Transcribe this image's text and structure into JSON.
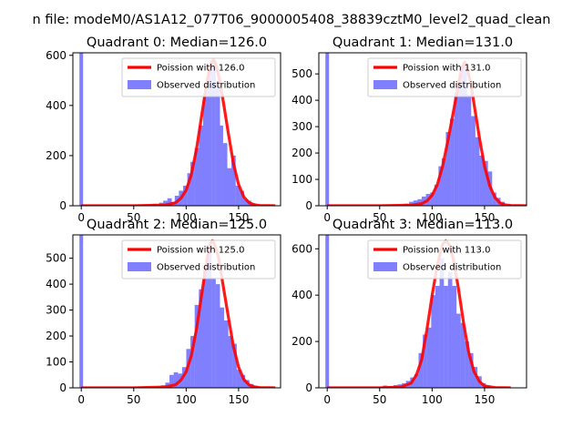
{
  "figure": {
    "suptitle": "n file: modeM0/AS1A12_077T06_9000005408_38839cztM0_level2_quad_clean"
  },
  "colors": {
    "poisson": "#ff0000",
    "observed": "#8080ff",
    "spike": "#8080ff"
  },
  "chart_data": [
    {
      "type": "bar",
      "title": "Quadrant 0: Median=126.0",
      "xlim": [
        -8,
        190
      ],
      "ylim": [
        0,
        610
      ],
      "xticks": [
        0,
        50,
        100,
        150
      ],
      "yticks": [
        0,
        200,
        400,
        600
      ],
      "bin_width": 3.8,
      "zero_spike": 610,
      "median": 126,
      "poisson_x": [
        0,
        50,
        80,
        90,
        95,
        100,
        105,
        110,
        115,
        120,
        124,
        126,
        128,
        132,
        136,
        140,
        145,
        150,
        155,
        160,
        165,
        170,
        185
      ],
      "poisson_y": [
        0,
        0,
        3,
        12,
        30,
        62,
        125,
        230,
        365,
        500,
        570,
        582,
        570,
        500,
        400,
        295,
        170,
        85,
        35,
        12,
        4,
        1,
        0
      ],
      "hist_x": [
        70,
        76,
        80,
        84,
        88,
        91,
        95,
        99,
        103,
        106,
        110,
        114,
        118,
        122,
        126,
        130,
        133,
        137,
        141,
        145,
        149,
        153,
        157,
        160,
        164
      ],
      "hist_y": [
        8,
        12,
        20,
        30,
        15,
        40,
        60,
        80,
        130,
        175,
        230,
        320,
        440,
        560,
        580,
        480,
        320,
        250,
        150,
        200,
        80,
        60,
        25,
        20,
        10
      ],
      "series": [
        {
          "name": "Poission with 126.0",
          "kind": "line"
        },
        {
          "name": "Observed distribution",
          "kind": "bar"
        }
      ]
    },
    {
      "type": "bar",
      "title": "Quadrant 1: Median=131.0",
      "xlim": [
        -8,
        190
      ],
      "ylim": [
        0,
        580
      ],
      "xticks": [
        0,
        50,
        100,
        150
      ],
      "yticks": [
        0,
        100,
        200,
        300,
        400,
        500
      ],
      "bin_width": 3.8,
      "zero_spike": 580,
      "median": 131,
      "poisson_x": [
        0,
        50,
        80,
        90,
        95,
        100,
        105,
        110,
        115,
        120,
        125,
        129,
        131,
        133,
        137,
        141,
        145,
        150,
        155,
        160,
        165,
        170,
        175,
        190
      ],
      "poisson_y": [
        0,
        0,
        2,
        8,
        18,
        40,
        80,
        150,
        245,
        350,
        460,
        530,
        545,
        530,
        460,
        360,
        260,
        150,
        75,
        30,
        10,
        3,
        1,
        0
      ],
      "hist_x": [
        75,
        80,
        84,
        88,
        92,
        96,
        100,
        104,
        108,
        111,
        115,
        119,
        123,
        127,
        131,
        135,
        139,
        143,
        147,
        151,
        155,
        159,
        163,
        167
      ],
      "hist_y": [
        8,
        15,
        20,
        25,
        35,
        45,
        50,
        80,
        150,
        180,
        280,
        330,
        430,
        500,
        540,
        420,
        340,
        260,
        190,
        170,
        130,
        50,
        30,
        15
      ],
      "series": [
        {
          "name": "Poission with 131.0",
          "kind": "line"
        },
        {
          "name": "Observed distribution",
          "kind": "bar"
        }
      ]
    },
    {
      "type": "bar",
      "title": "Quadrant 2: Median=125.0",
      "xlim": [
        -8,
        190
      ],
      "ylim": [
        0,
        590
      ],
      "xticks": [
        0,
        50,
        100,
        150
      ],
      "yticks": [
        0,
        100,
        200,
        300,
        400,
        500
      ],
      "bin_width": 3.8,
      "zero_spike": 590,
      "median": 125,
      "poisson_x": [
        0,
        50,
        80,
        90,
        95,
        100,
        105,
        110,
        115,
        120,
        123,
        125,
        127,
        131,
        135,
        140,
        145,
        150,
        155,
        160,
        165,
        170,
        185
      ],
      "poisson_y": [
        0,
        0,
        3,
        12,
        30,
        62,
        125,
        230,
        365,
        500,
        555,
        568,
        555,
        500,
        400,
        280,
        160,
        80,
        32,
        11,
        4,
        1,
        0
      ],
      "hist_x": [
        73,
        78,
        82,
        86,
        90,
        94,
        98,
        102,
        106,
        110,
        114,
        118,
        122,
        126,
        130,
        134,
        138,
        142,
        146,
        150,
        154,
        158,
        162,
        166
      ],
      "hist_y": [
        5,
        10,
        20,
        50,
        60,
        55,
        80,
        150,
        200,
        320,
        380,
        470,
        550,
        420,
        400,
        310,
        260,
        200,
        170,
        70,
        50,
        30,
        15,
        8
      ],
      "series": [
        {
          "name": "Poission with 125.0",
          "kind": "line"
        },
        {
          "name": "Observed distribution",
          "kind": "bar"
        }
      ]
    },
    {
      "type": "bar",
      "title": "Quadrant 3: Median=113.0",
      "xlim": [
        -8,
        190
      ],
      "ylim": [
        0,
        660
      ],
      "xticks": [
        0,
        50,
        100,
        150
      ],
      "yticks": [
        0,
        200,
        400,
        600
      ],
      "bin_width": 3.8,
      "zero_spike": 660,
      "median": 113,
      "poisson_x": [
        0,
        50,
        70,
        80,
        85,
        90,
        95,
        100,
        105,
        110,
        113,
        116,
        120,
        125,
        130,
        135,
        140,
        145,
        150,
        160,
        175
      ],
      "poisson_y": [
        0,
        0,
        3,
        20,
        55,
        120,
        250,
        400,
        530,
        620,
        635,
        620,
        560,
        430,
        280,
        150,
        70,
        28,
        8,
        1,
        0
      ],
      "hist_x": [
        55,
        60,
        65,
        69,
        73,
        77,
        81,
        85,
        89,
        93,
        97,
        101,
        105,
        109,
        113,
        117,
        121,
        125,
        129,
        133,
        137,
        141,
        145,
        149,
        153
      ],
      "hist_y": [
        10,
        8,
        12,
        15,
        20,
        30,
        45,
        60,
        150,
        230,
        260,
        400,
        440,
        560,
        440,
        500,
        440,
        320,
        280,
        200,
        150,
        90,
        50,
        20,
        10
      ],
      "series": [
        {
          "name": "Poission with 113.0",
          "kind": "line"
        },
        {
          "name": "Observed distribution",
          "kind": "bar"
        }
      ]
    }
  ]
}
